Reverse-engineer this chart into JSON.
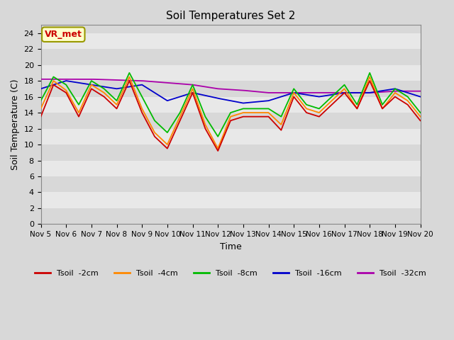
{
  "title": "Soil Temperatures Set 2",
  "xlabel": "Time",
  "ylabel": "Soil Temperature (C)",
  "ylim": [
    0,
    25
  ],
  "yticks": [
    0,
    2,
    4,
    6,
    8,
    10,
    12,
    14,
    16,
    18,
    20,
    22,
    24
  ],
  "xlim": [
    0,
    360
  ],
  "xtick_labels": [
    "Nov 5",
    "Nov 6",
    "Nov 7",
    "Nov 8",
    "Nov 9",
    "Nov 10",
    "Nov 11",
    "Nov 12",
    "Nov 13",
    "Nov 14",
    "Nov 15",
    "Nov 16",
    "Nov 17",
    "Nov 18",
    "Nov 19",
    "Nov 20"
  ],
  "xtick_positions": [
    0,
    24,
    48,
    72,
    96,
    120,
    144,
    168,
    192,
    216,
    240,
    264,
    288,
    312,
    336,
    360
  ],
  "bg_color": "#d8d8d8",
  "plot_bg_color": "#d8d8d8",
  "band_colors": [
    "#d8d8d8",
    "#e8e8e8"
  ],
  "line_colors": {
    "Tsoil -2cm": "#cc0000",
    "Tsoil -4cm": "#ff8800",
    "Tsoil -8cm": "#00bb00",
    "Tsoil -16cm": "#0000cc",
    "Tsoil -32cm": "#aa00aa"
  },
  "annotation_text": "VR_met",
  "annotation_color": "#cc0000",
  "annotation_bg": "#ffffcc",
  "annotation_border": "#999900"
}
